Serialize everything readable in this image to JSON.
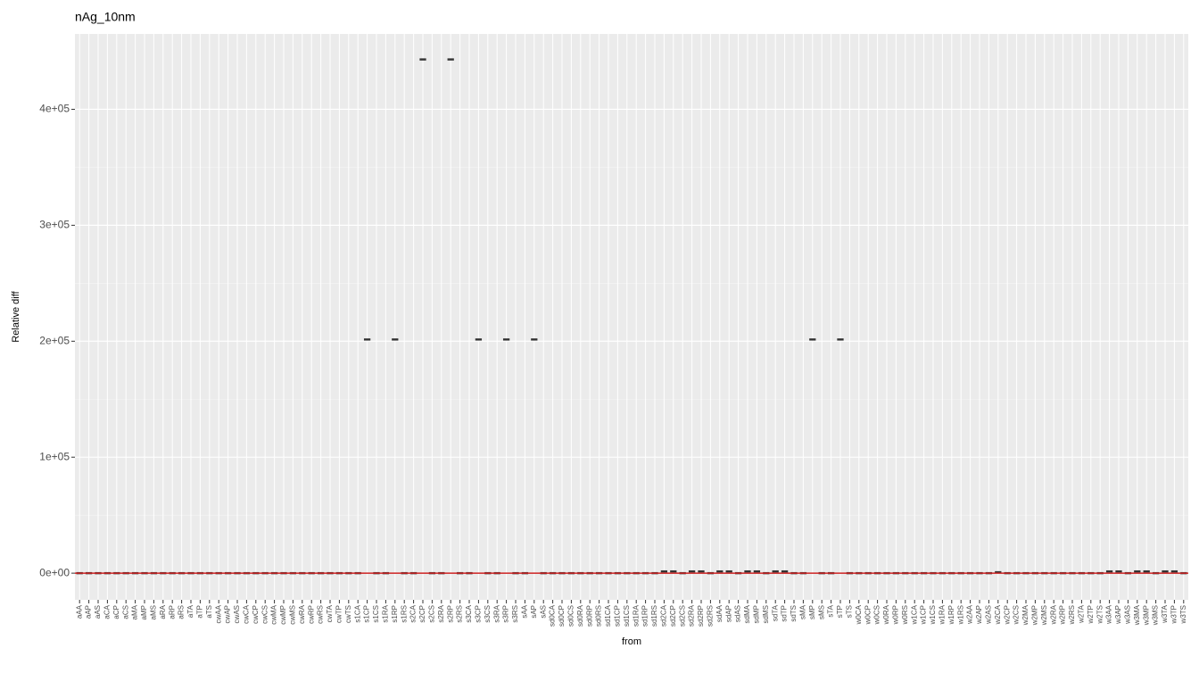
{
  "chart_data": {
    "type": "box",
    "title": "nAg_10nm",
    "xlabel": "from",
    "ylabel": "Relative diff",
    "categories": [
      "aAA",
      "aAP",
      "aAS",
      "aCA",
      "aCP",
      "aCS",
      "aMA",
      "aMP",
      "aMS",
      "aRA",
      "aRP",
      "aRS",
      "aTA",
      "aTP",
      "aTS",
      "cwAA",
      "cwAP",
      "cwAS",
      "cwCA",
      "cwCP",
      "cwCS",
      "cwMA",
      "cwMP",
      "cwMS",
      "cwRA",
      "cwRP",
      "cwRS",
      "cwTA",
      "cwTP",
      "cwTS",
      "s1CA",
      "s1CP",
      "s1CS",
      "s1RA",
      "s1RP",
      "s1RS",
      "s2CA",
      "s2CP",
      "s2CS",
      "s2RA",
      "s2RP",
      "s2RS",
      "s3CA",
      "s3CP",
      "s3CS",
      "s3RA",
      "s3RP",
      "s3RS",
      "sAA",
      "sAP",
      "sAS",
      "sd0CA",
      "sd0CP",
      "sd0CS",
      "sd0RA",
      "sd0RP",
      "sd0RS",
      "sd1CA",
      "sd1CP",
      "sd1CS",
      "sd1RA",
      "sd1RP",
      "sd1RS",
      "sd2CA",
      "sd2CP",
      "sd2CS",
      "sd2RA",
      "sd2RP",
      "sd2RS",
      "sdAA",
      "sdAP",
      "sdAS",
      "sdMA",
      "sdMP",
      "sdMS",
      "sdTA",
      "sdTP",
      "sdTS",
      "sMA",
      "sMP",
      "sMS",
      "sTA",
      "sTP",
      "sTS",
      "w0CA",
      "w0CP",
      "w0CS",
      "w0RA",
      "w0RP",
      "w0RS",
      "w1CA",
      "w1CP",
      "w1CS",
      "w1RA",
      "w1RP",
      "w1RS",
      "w2AA",
      "w2AP",
      "w2AS",
      "w2CA",
      "w2CP",
      "w2CS",
      "w2MA",
      "w2MP",
      "w2MS",
      "w2RA",
      "w2RP",
      "w2RS",
      "w2TA",
      "w2TP",
      "w2TS",
      "w3AA",
      "w3AP",
      "w3AS",
      "w3MA",
      "w3MP",
      "w3MS",
      "w3TA",
      "w3TP",
      "w3TS"
    ],
    "values": [
      0,
      0,
      0,
      0,
      0,
      0,
      0,
      0,
      0,
      0,
      0,
      0,
      0,
      0,
      0,
      0,
      0,
      0,
      0,
      0,
      0,
      0,
      0,
      0,
      0,
      0,
      0,
      0,
      0,
      0,
      0,
      201500,
      0,
      0,
      201500,
      0,
      0,
      443000,
      0,
      0,
      443000,
      0,
      0,
      201500,
      0,
      0,
      201500,
      0,
      0,
      201500,
      0,
      0,
      0,
      0,
      0,
      0,
      0,
      0,
      0,
      0,
      0,
      0,
      0,
      1500,
      1500,
      0,
      1500,
      1500,
      0,
      1500,
      1500,
      0,
      1500,
      1500,
      0,
      1500,
      1500,
      0,
      0,
      201500,
      0,
      0,
      201500,
      0,
      0,
      0,
      0,
      0,
      0,
      0,
      0,
      0,
      0,
      0,
      0,
      0,
      0,
      0,
      0,
      800,
      0,
      0,
      0,
      0,
      0,
      0,
      0,
      0,
      0,
      0,
      0,
      1500,
      1500,
      0,
      1500,
      1500,
      0,
      1500,
      1500,
      0
    ],
    "color": "#333333",
    "hline": 0,
    "hline_color": "#cc2222",
    "ylim": [
      -23000,
      465000
    ],
    "yticks": [
      {
        "value": 0,
        "label": "0e+00"
      },
      {
        "value": 100000,
        "label": "1e+05"
      },
      {
        "value": 200000,
        "label": "2e+05"
      },
      {
        "value": 300000,
        "label": "3e+05"
      },
      {
        "value": 400000,
        "label": "4e+05"
      }
    ],
    "grid": true
  }
}
